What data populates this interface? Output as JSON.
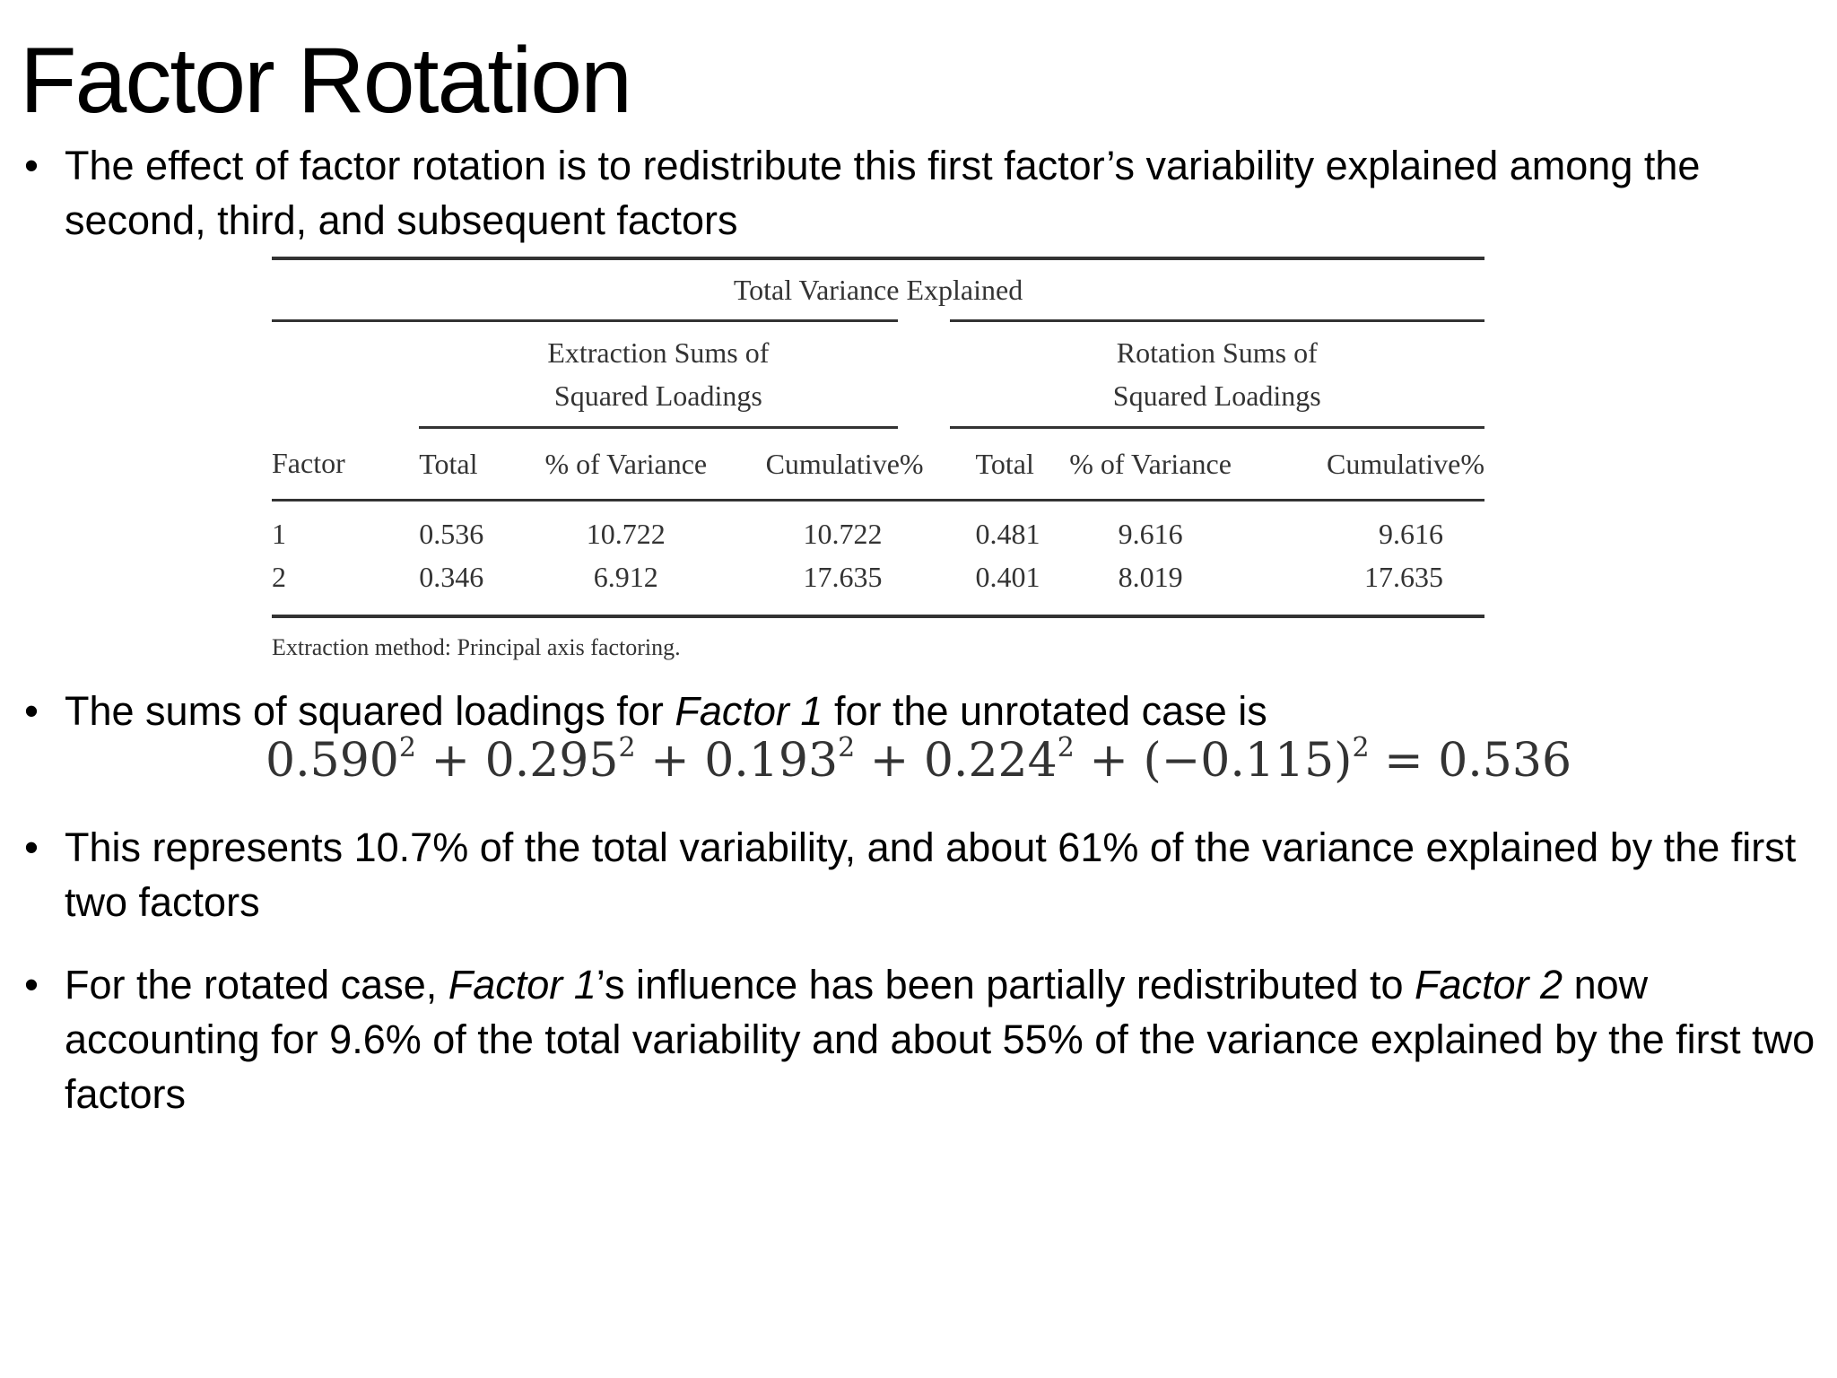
{
  "slide": {
    "title": "Factor Rotation"
  },
  "bullets": [
    {
      "dot": "•",
      "text": "The effect of factor rotation is to redistribute this first factor’s variability explained among the second, third, and subsequent factors"
    },
    {
      "dot": "•",
      "parts": [
        "The sums of squared loadings for ",
        "Factor 1",
        " for the unrotated case is"
      ]
    },
    {
      "dot": "•",
      "text": "This represents 10.7% of the total variability, and about 61% of the variance explained by the first two factors"
    },
    {
      "dot": "•",
      "parts": [
        "For the rotated case, ",
        "Factor 1",
        "’s influence has been partially redistributed to ",
        "Factor 2",
        " now accounting for 9.6% of the total variability and about 55% of the variance explained by the first two factors"
      ]
    }
  ],
  "equation": {
    "terms": [
      "0.590",
      "0.295",
      "0.193",
      "0.224",
      "(−0.115)"
    ],
    "exponent": "2",
    "plus": "+",
    "equals": "=",
    "result": "0.536"
  },
  "table": {
    "caption": "Total Variance Explained",
    "group_extraction": [
      "Extraction Sums of",
      "Squared Loadings"
    ],
    "group_rotation": [
      "Rotation Sums of",
      "Squared Loadings"
    ],
    "headers": [
      "Factor",
      "Total",
      "% of Variance",
      "Cumulative%",
      "Total",
      "% of Variance",
      "Cumulative%"
    ],
    "rows": [
      [
        "1",
        "0.536",
        "10.722",
        "10.722",
        "0.481",
        "9.616",
        "9.616"
      ],
      [
        "2",
        "0.346",
        "6.912",
        "17.635",
        "0.401",
        "8.019",
        "17.635"
      ]
    ],
    "note": "Extraction method: Principal axis factoring."
  }
}
